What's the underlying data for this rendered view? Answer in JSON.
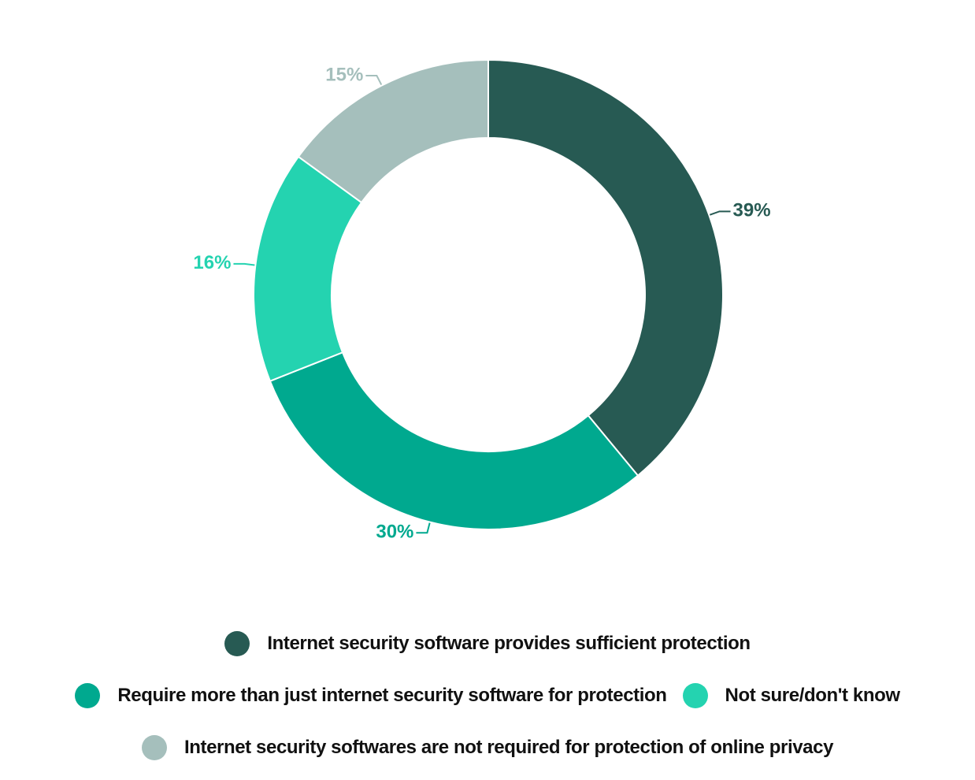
{
  "chart_data": {
    "type": "pie",
    "donut": true,
    "title": "",
    "series": [
      {
        "name": "",
        "values": [
          39,
          30,
          16,
          15
        ]
      }
    ],
    "categories": [
      "Internet security software provides sufficient protection",
      "Require more than just internet security software for protection",
      "Not sure/don't know",
      "Internet security softwares are not required for protection of online privacy"
    ],
    "data_labels": [
      "39%",
      "30%",
      "16%",
      "15%"
    ],
    "colors": [
      "#275a53",
      "#00a98f",
      "#24d3b0",
      "#a5bfbc"
    ],
    "legend_placement": "bottom"
  },
  "legend": {
    "items": [
      {
        "label": "Internet security software provides sufficient protection",
        "color": "#275a53"
      },
      {
        "label": "Require more than just internet security software for protection",
        "color": "#00a98f"
      },
      {
        "label": "Not sure/don't know",
        "color": "#24d3b0"
      },
      {
        "label": "Internet security softwares are not required for protection of online privacy",
        "color": "#a5bfbc"
      }
    ]
  }
}
